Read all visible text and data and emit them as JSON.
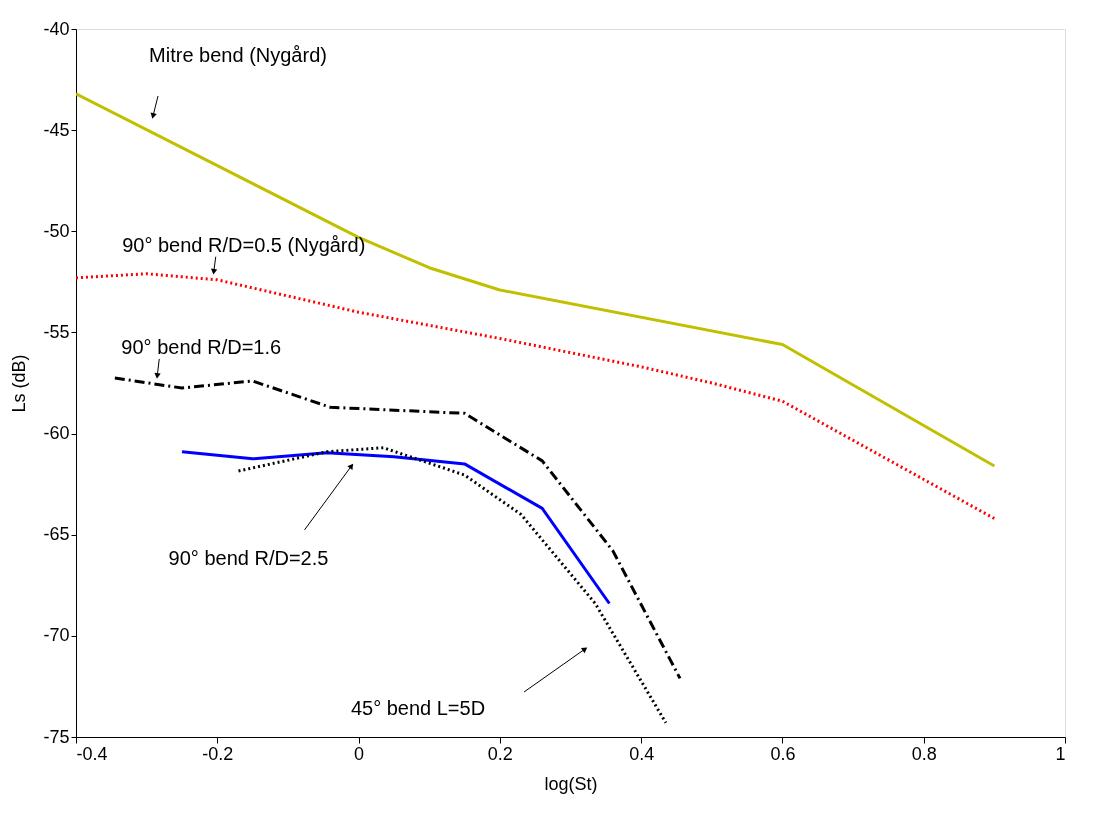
{
  "chart_data": {
    "type": "line",
    "xlabel": "log(St)",
    "ylabel": "Ls (dB)",
    "xlim": [
      -0.4,
      1
    ],
    "ylim": [
      -75,
      -40
    ],
    "xticks": [
      -0.4,
      -0.2,
      0,
      0.2,
      0.4,
      0.6,
      0.8,
      1
    ],
    "yticks": [
      -75,
      -70,
      -65,
      -60,
      -55,
      -50,
      -45,
      -40
    ],
    "grid": false,
    "marker": "none",
    "series": [
      {
        "color": "#c0c000",
        "line_style": "solid",
        "x": [
          -0.4,
          0,
          0.1,
          0.2,
          0.6,
          0.9
        ],
        "values": [
          -43.2,
          -50.3,
          -51.8,
          -52.9,
          -55.6,
          -61.6
        ]
      },
      {
        "color": "#ff0000",
        "line_style": "dotted",
        "x": [
          -0.4,
          -0.3,
          -0.2,
          0,
          0.2,
          0.4,
          0.5,
          0.6,
          0.9
        ],
        "values": [
          -52.3,
          -52.1,
          -52.4,
          -54.0,
          -55.3,
          -56.7,
          -57.5,
          -58.4,
          -64.2
        ]
      },
      {
        "color": "#000000",
        "line_style": "dashed",
        "x": [
          -0.345,
          -0.25,
          -0.15,
          -0.04,
          0.15,
          0.26,
          0.36,
          0.455
        ],
        "values": [
          -57.25,
          -57.75,
          -57.4,
          -58.7,
          -59.0,
          -61.35,
          -65.8,
          -72.1
        ]
      },
      {
        "color": "#0000ff",
        "line_style": "solid",
        "x": [
          -0.25,
          -0.15,
          -0.045,
          0.05,
          0.15,
          0.26,
          0.355
        ],
        "values": [
          -60.9,
          -61.25,
          -60.95,
          -61.15,
          -61.5,
          -63.7,
          -68.4
        ]
      },
      {
        "color": "#000000",
        "line_style": "dotted",
        "x": [
          -0.17,
          -0.045,
          0.035,
          0.15,
          0.23,
          0.335,
          0.435
        ],
        "values": [
          -61.85,
          -60.9,
          -60.7,
          -62.05,
          -64.0,
          -68.4,
          -74.3
        ]
      }
    ],
    "annotations": [
      "Mitre bend (Nygård)",
      {
        "text": "90° bend R/D=0.5 (Nygård)",
        "x": -0.205,
        "y": -52.0
      },
      {
        "text": "90° bend R/D=1.6",
        "x": -0.285,
        "y": -57.15
      },
      {
        "text": "90° bend R/D=2.5",
        "x": -0.01,
        "y": -61.6
      },
      "45° bend L=5D"
    ]
  }
}
